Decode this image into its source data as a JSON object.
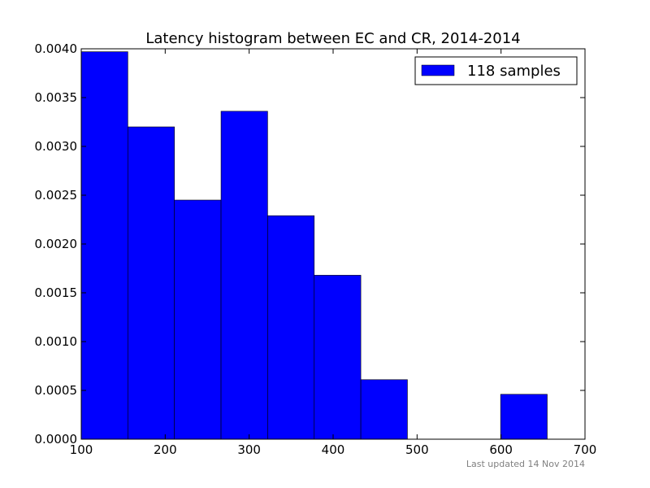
{
  "chart_data": {
    "type": "bar",
    "title": "Latency histogram between EC and CR, 2014-2014",
    "xlabel": "",
    "ylabel": "",
    "xlim": [
      100,
      700
    ],
    "ylim": [
      0,
      0.004
    ],
    "x_ticks": [
      100,
      200,
      300,
      400,
      500,
      600,
      700
    ],
    "x_tick_labels": [
      "100",
      "200",
      "300",
      "400",
      "500",
      "600",
      "700"
    ],
    "y_ticks": [
      0,
      0.0005,
      0.001,
      0.0015,
      0.002,
      0.0025,
      0.003,
      0.0035,
      0.004
    ],
    "y_tick_labels": [
      "0.0000",
      "0.0005",
      "0.0010",
      "0.0015",
      "0.0020",
      "0.0025",
      "0.0030",
      "0.0035",
      "0.0040"
    ],
    "bins": [
      {
        "start": 100,
        "end": 155.5,
        "value": 0.00397
      },
      {
        "start": 155.5,
        "end": 211,
        "value": 0.0032
      },
      {
        "start": 211,
        "end": 266.5,
        "value": 0.00245
      },
      {
        "start": 266.5,
        "end": 322,
        "value": 0.00336
      },
      {
        "start": 322,
        "end": 377.5,
        "value": 0.00229
      },
      {
        "start": 377.5,
        "end": 433,
        "value": 0.00168
      },
      {
        "start": 433,
        "end": 488.5,
        "value": 0.00061
      },
      {
        "start": 488.5,
        "end": 544,
        "value": 0
      },
      {
        "start": 544,
        "end": 599.5,
        "value": 0
      },
      {
        "start": 599.5,
        "end": 655,
        "value": 0.00046
      }
    ],
    "series": [
      {
        "name": "118 samples",
        "color": "#0000ff"
      }
    ],
    "legend_position": "top-right",
    "grid": false,
    "footnote": "Last updated 14 Nov 2014"
  }
}
